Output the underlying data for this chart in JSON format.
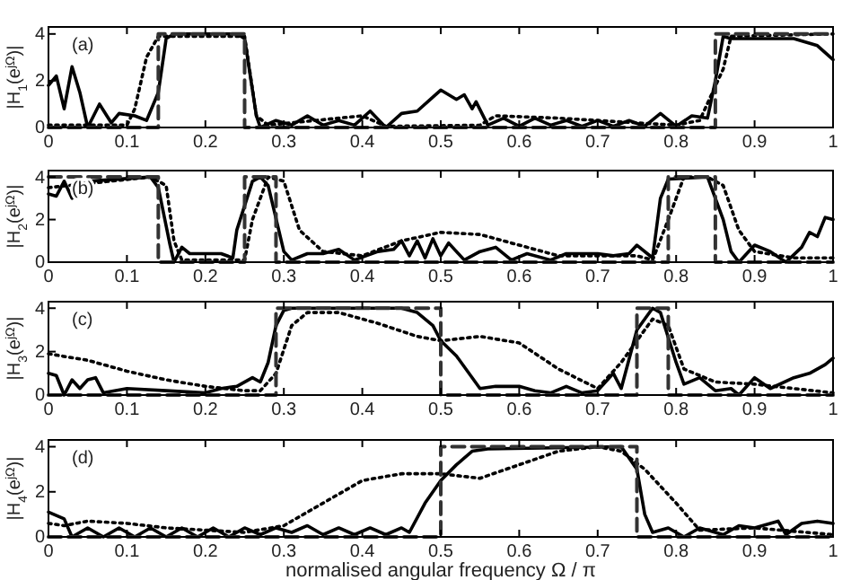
{
  "chart_data": [
    {
      "type": "line",
      "ylabel": "|H$_{1}$(e$^{jΩ}$)|",
      "annotations": [
        "(a)"
      ],
      "xlim": [
        0,
        1
      ],
      "xticks": [
        0,
        0.1,
        0.2,
        0.3,
        0.4,
        0.5,
        0.6,
        0.7,
        0.8,
        0.9,
        1
      ],
      "ylim": [
        0,
        4.3
      ],
      "yticks": [
        0,
        2,
        4
      ],
      "grid": false,
      "series": [
        {
          "color": "#000000",
          "line_style": "solid",
          "x": [
            0,
            0.01,
            0.02,
            0.03,
            0.04,
            0.05,
            0.065,
            0.08,
            0.09,
            0.11,
            0.125,
            0.14,
            0.15,
            0.16,
            0.24,
            0.25,
            0.265,
            0.27,
            0.29,
            0.31,
            0.33,
            0.35,
            0.37,
            0.39,
            0.41,
            0.43,
            0.45,
            0.47,
            0.49,
            0.5,
            0.52,
            0.53,
            0.54,
            0.545,
            0.56,
            0.58,
            0.6,
            0.62,
            0.64,
            0.66,
            0.68,
            0.7,
            0.72,
            0.74,
            0.76,
            0.78,
            0.8,
            0.82,
            0.84,
            0.85,
            0.86,
            0.87,
            0.95,
            0.98,
            1
          ],
          "values": [
            1.8,
            2.2,
            0.8,
            2.6,
            1.5,
            0,
            1,
            0.2,
            0.6,
            0.5,
            0.3,
            1.5,
            3.8,
            4,
            4,
            3.8,
            0.5,
            0,
            0.3,
            0.1,
            0.5,
            0.1,
            0.3,
            0.1,
            0.7,
            0,
            0.6,
            0.7,
            1.3,
            1.6,
            1.2,
            1.4,
            0.8,
            1.1,
            0.1,
            0.4,
            0.05,
            0.4,
            0.1,
            0.3,
            0.05,
            0.3,
            0.05,
            0.3,
            0.05,
            0.6,
            0.05,
            0.5,
            0.4,
            2,
            3.9,
            3.8,
            3.8,
            3.5,
            2.9
          ]
        },
        {
          "color": "#000000",
          "line_style": "dotted",
          "x": [
            0,
            0.1,
            0.11,
            0.125,
            0.14,
            0.25,
            0.265,
            0.28,
            0.4,
            0.43,
            0.55,
            0.57,
            0.65,
            0.8,
            0.83,
            0.86,
            0.87,
            1
          ],
          "values": [
            0.1,
            0.1,
            0.8,
            3,
            3.9,
            3.9,
            0.5,
            0.1,
            0.5,
            0.05,
            0.1,
            0.5,
            0.4,
            0.1,
            0.3,
            2.5,
            3.9,
            4
          ]
        },
        {
          "color": "#333333",
          "line_style": "dashed",
          "x": [
            0,
            0.14,
            0.14,
            0.25,
            0.25,
            0.85,
            0.85,
            1
          ],
          "values": [
            0,
            0,
            4,
            4,
            0,
            0,
            4,
            4
          ]
        }
      ]
    },
    {
      "type": "line",
      "ylabel": "|H$_{2}$(e$^{jΩ}$)|",
      "annotations": [
        "(b)"
      ],
      "xlim": [
        0,
        1
      ],
      "xticks": [
        0,
        0.1,
        0.2,
        0.3,
        0.4,
        0.5,
        0.6,
        0.7,
        0.8,
        0.9,
        1
      ],
      "ylim": [
        0,
        4.3
      ],
      "yticks": [
        0,
        2,
        4
      ],
      "grid": false,
      "series": [
        {
          "color": "#000000",
          "line_style": "solid",
          "x": [
            0,
            0.01,
            0.02,
            0.03,
            0.04,
            0.05,
            0.13,
            0.14,
            0.155,
            0.16,
            0.17,
            0.18,
            0.2,
            0.22,
            0.235,
            0.24,
            0.26,
            0.27,
            0.28,
            0.3,
            0.31,
            0.33,
            0.35,
            0.37,
            0.39,
            0.42,
            0.44,
            0.45,
            0.46,
            0.47,
            0.48,
            0.49,
            0.5,
            0.51,
            0.53,
            0.55,
            0.57,
            0.59,
            0.61,
            0.64,
            0.66,
            0.68,
            0.7,
            0.72,
            0.74,
            0.75,
            0.77,
            0.78,
            0.79,
            0.84,
            0.86,
            0.87,
            0.88,
            0.9,
            0.92,
            0.94,
            0.96,
            0.97,
            0.98,
            0.99,
            1
          ],
          "values": [
            3.2,
            3.1,
            3.8,
            3,
            3.6,
            3.8,
            4,
            3.5,
            0.8,
            0,
            0.7,
            0.4,
            0.4,
            0.4,
            0.2,
            1.5,
            3.8,
            4,
            3.6,
            0.5,
            0.1,
            0.4,
            0.4,
            0.6,
            0.1,
            0.5,
            0.6,
            1,
            0.3,
            1,
            0.2,
            1.1,
            0.3,
            0.9,
            0.1,
            0.5,
            0.7,
            0.1,
            0.4,
            0.1,
            0.4,
            0.4,
            0.4,
            0.3,
            0.4,
            0.8,
            0.2,
            3,
            3.9,
            4,
            2,
            0.5,
            0,
            0.8,
            0.5,
            0,
            0.7,
            1.4,
            1.2,
            2.1,
            2
          ]
        },
        {
          "color": "#000000",
          "line_style": "dotted",
          "x": [
            0,
            0.13,
            0.15,
            0.16,
            0.17,
            0.25,
            0.26,
            0.28,
            0.3,
            0.32,
            0.35,
            0.4,
            0.45,
            0.5,
            0.55,
            0.6,
            0.65,
            0.75,
            0.77,
            0.79,
            0.81,
            0.84,
            0.86,
            0.88,
            0.9,
            0.95,
            1
          ],
          "values": [
            3.5,
            4,
            3.6,
            1,
            0.1,
            0.1,
            2,
            4,
            3.8,
            1.5,
            0.5,
            0.3,
            1,
            1.4,
            1.3,
            0.8,
            0.3,
            0.3,
            0.1,
            2,
            4,
            4,
            3.6,
            1.5,
            0.5,
            0.2,
            0.2
          ]
        },
        {
          "color": "#333333",
          "line_style": "dashed",
          "x": [
            0,
            0.14,
            0.14,
            0.25,
            0.25,
            0.29,
            0.29,
            0.79,
            0.79,
            0.85,
            0.85,
            1
          ],
          "values": [
            4,
            4,
            0,
            0,
            4,
            4,
            0,
            0,
            4,
            4,
            0,
            0
          ]
        }
      ]
    },
    {
      "type": "line",
      "ylabel": "|H$_{3}$(e$^{jΩ}$)|",
      "annotations": [
        "(c)"
      ],
      "xlim": [
        0,
        1
      ],
      "xticks": [
        0,
        0.1,
        0.2,
        0.3,
        0.4,
        0.5,
        0.6,
        0.7,
        0.8,
        0.9,
        1
      ],
      "ylim": [
        0,
        4.3
      ],
      "yticks": [
        0,
        2,
        4
      ],
      "grid": false,
      "series": [
        {
          "color": "#000000",
          "line_style": "solid",
          "x": [
            0,
            0.01,
            0.02,
            0.03,
            0.04,
            0.05,
            0.06,
            0.07,
            0.1,
            0.15,
            0.2,
            0.22,
            0.24,
            0.26,
            0.27,
            0.28,
            0.29,
            0.3,
            0.31,
            0.45,
            0.47,
            0.49,
            0.5,
            0.52,
            0.55,
            0.57,
            0.6,
            0.62,
            0.64,
            0.66,
            0.68,
            0.7,
            0.72,
            0.73,
            0.75,
            0.77,
            0.78,
            0.8,
            0.81,
            0.83,
            0.85,
            0.87,
            0.88,
            0.9,
            0.92,
            0.95,
            0.97,
            0.99,
            1
          ],
          "values": [
            1,
            0.9,
            0,
            0.7,
            0.3,
            0.7,
            0.8,
            0.1,
            0.3,
            0.2,
            0.1,
            0.3,
            0.4,
            0.8,
            0.6,
            1.5,
            3.2,
            3.9,
            4,
            4,
            3.8,
            3.2,
            2.5,
            1.8,
            0.3,
            0.4,
            0.4,
            0.2,
            0.1,
            0.4,
            0.1,
            0.2,
            1,
            0.3,
            3,
            4,
            3.8,
            1.5,
            0.5,
            0.8,
            0.2,
            0.3,
            0,
            0.8,
            0.3,
            0.8,
            1,
            1.4,
            1.7
          ]
        },
        {
          "color": "#000000",
          "line_style": "dotted",
          "x": [
            0,
            0.05,
            0.1,
            0.15,
            0.2,
            0.25,
            0.27,
            0.29,
            0.31,
            0.33,
            0.37,
            0.42,
            0.47,
            0.5,
            0.55,
            0.6,
            0.65,
            0.7,
            0.73,
            0.77,
            0.79,
            0.81,
            0.85,
            0.9,
            0.95,
            1
          ],
          "values": [
            1.9,
            1.6,
            1.1,
            0.7,
            0.4,
            0.2,
            0.2,
            1,
            3.2,
            3.8,
            3.8,
            3.3,
            2.7,
            2.5,
            2.7,
            2.4,
            1.2,
            0.3,
            1.5,
            3.5,
            3.2,
            1.2,
            0.6,
            0.5,
            0.3,
            0.1
          ]
        },
        {
          "color": "#333333",
          "line_style": "dashed",
          "x": [
            0,
            0.29,
            0.29,
            0.5,
            0.5,
            0.75,
            0.75,
            0.79,
            0.79,
            1
          ],
          "values": [
            0,
            0,
            4,
            4,
            0,
            0,
            4,
            4,
            0,
            0
          ]
        }
      ]
    },
    {
      "type": "line",
      "ylabel": "|H$_{4}$(e$^{jΩ}$)|",
      "xlabel": "normalised angular frequency Ω / π",
      "annotations": [
        "(d)"
      ],
      "xlim": [
        0,
        1
      ],
      "xticks": [
        0,
        0.1,
        0.2,
        0.3,
        0.4,
        0.5,
        0.6,
        0.7,
        0.8,
        0.9,
        1
      ],
      "ylim": [
        0,
        4.3
      ],
      "yticks": [
        0,
        2,
        4
      ],
      "grid": false,
      "series": [
        {
          "color": "#000000",
          "line_style": "solid",
          "x": [
            0,
            0.02,
            0.03,
            0.05,
            0.07,
            0.09,
            0.11,
            0.13,
            0.15,
            0.17,
            0.19,
            0.21,
            0.23,
            0.25,
            0.27,
            0.29,
            0.31,
            0.33,
            0.35,
            0.37,
            0.39,
            0.41,
            0.43,
            0.45,
            0.46,
            0.48,
            0.5,
            0.52,
            0.54,
            0.56,
            0.73,
            0.75,
            0.76,
            0.77,
            0.79,
            0.81,
            0.83,
            0.86,
            0.88,
            0.9,
            0.93,
            0.94,
            0.96,
            0.98,
            1
          ],
          "values": [
            1.1,
            0.8,
            0,
            0.4,
            0,
            0.4,
            0,
            0.4,
            0,
            0.4,
            0,
            0.4,
            0,
            0.4,
            0.1,
            0.4,
            0.2,
            0.5,
            0.1,
            0.4,
            0.1,
            0.4,
            0.1,
            0.4,
            0.2,
            1.5,
            2.5,
            3.2,
            3.8,
            3.9,
            4,
            3,
            1,
            0.2,
            0.4,
            0,
            0.4,
            0.1,
            0.5,
            0.4,
            0.7,
            0.1,
            0.6,
            0.7,
            0.6
          ]
        },
        {
          "color": "#000000",
          "line_style": "dotted",
          "x": [
            0,
            0.02,
            0.05,
            0.1,
            0.15,
            0.2,
            0.25,
            0.3,
            0.35,
            0.4,
            0.45,
            0.5,
            0.55,
            0.6,
            0.65,
            0.7,
            0.73,
            0.76,
            0.8,
            0.83,
            0.9,
            1
          ],
          "values": [
            0.6,
            0.5,
            0.7,
            0.6,
            0.4,
            0.3,
            0.2,
            0.5,
            1.5,
            2.5,
            2.8,
            2.8,
            2.6,
            3.2,
            3.8,
            4,
            3.8,
            3,
            1.5,
            0.3,
            0.4,
            0.1
          ]
        },
        {
          "color": "#333333",
          "line_style": "dashed",
          "x": [
            0,
            0.5,
            0.5,
            0.75,
            0.75,
            1
          ],
          "values": [
            0,
            0,
            4,
            4,
            0,
            0
          ]
        }
      ]
    }
  ]
}
